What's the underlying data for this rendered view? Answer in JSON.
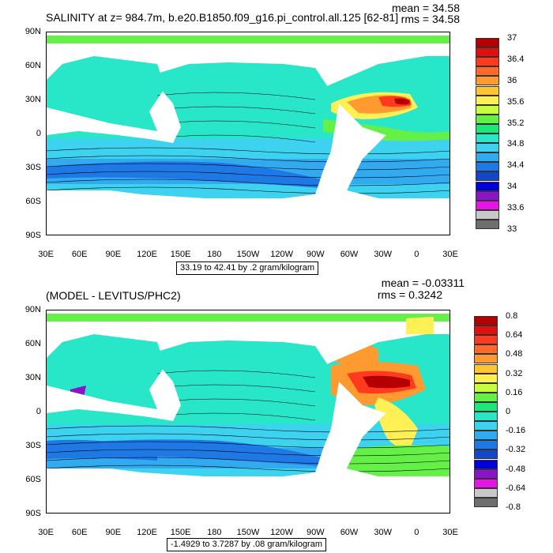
{
  "panels": [
    {
      "title": "SALINITY at z= 984.7m, b.e20.B1850.f09_g16.pi_control.all.125 [62-81]",
      "mean": "mean = 34.58",
      "rms": "rms = 34.58",
      "range_note": "33.19 to 42.41 by .2 gram/kilogram",
      "colorbar": {
        "labels": [
          "37",
          "36.4",
          "36",
          "35.6",
          "35.2",
          "34.8",
          "34.4",
          "34",
          "33.6",
          "33"
        ],
        "colors": [
          "#b40000",
          "#e01010",
          "#ff3a1f",
          "#ff6a2a",
          "#ff9a30",
          "#ffc535",
          "#fff055",
          "#c8ff3c",
          "#64f046",
          "#1ee678",
          "#28e6c8",
          "#3cd2f0",
          "#32aaf0",
          "#1e78e6",
          "#1446c8",
          "#0000dc",
          "#8c14c8",
          "#e614e6",
          "#c8c8c8",
          "#6e6e6e"
        ]
      }
    },
    {
      "title": "(MODEL - LEVITUS/PHC2)",
      "mean": "mean = -0.03311",
      "rms": "rms = 0.3242",
      "range_note": "-1.4929 to 3.7287 by .08 gram/kilogram",
      "colorbar": {
        "labels": [
          "0.8",
          "0.64",
          "0.48",
          "0.32",
          "0.16",
          "0",
          "-0.16",
          "-0.32",
          "-0.48",
          "-0.64",
          "-0.8"
        ],
        "colors": [
          "#b40000",
          "#e01010",
          "#ff3a1f",
          "#ff6a2a",
          "#ff9a30",
          "#ffc535",
          "#fff055",
          "#c8ff3c",
          "#64f046",
          "#1ee678",
          "#28e6c8",
          "#3cd2f0",
          "#32aaf0",
          "#1e78e6",
          "#1446c8",
          "#0000dc",
          "#8c14c8",
          "#e614e6",
          "#c8c8c8",
          "#6e6e6e"
        ]
      }
    }
  ],
  "axes": {
    "lon_labels": [
      "30E",
      "60E",
      "90E",
      "120E",
      "150E",
      "180",
      "150W",
      "120W",
      "90W",
      "60W",
      "30W",
      "0",
      "30E"
    ],
    "lat_labels": [
      "90N",
      "60N",
      "30N",
      "0",
      "30S",
      "60S",
      "90S"
    ]
  }
}
